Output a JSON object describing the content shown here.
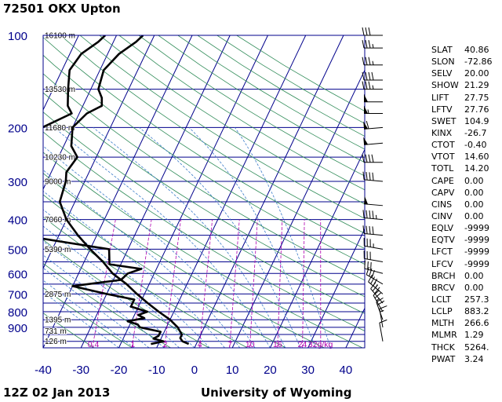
{
  "header": {
    "station": "72501 OKX Upton"
  },
  "footer": {
    "time": "12Z 02 Jan 2013",
    "source": "University of Wyoming"
  },
  "colors": {
    "isobar": "#00008b",
    "isotherm": "#00008b",
    "dry_adiabat": "#2e8b57",
    "moist_adiabat": "#3a7bc8",
    "mixing_ratio": "#b000b0",
    "sounding": "#000000",
    "axis_label": "#00008b",
    "mixing_label": "#b000b0"
  },
  "params": [
    {
      "name": "SLAT",
      "value": "40.86"
    },
    {
      "name": "SLON",
      "value": "-72.86"
    },
    {
      "name": "SELV",
      "value": "20.00"
    },
    {
      "name": "SHOW",
      "value": "21.29"
    },
    {
      "name": "LIFT",
      "value": "27.75"
    },
    {
      "name": "LFTV",
      "value": "27.76"
    },
    {
      "name": "SWET",
      "value": "104.9"
    },
    {
      "name": "KINX",
      "value": "-26.7"
    },
    {
      "name": "CTOT",
      "value": "-0.40"
    },
    {
      "name": "VTOT",
      "value": "14.60"
    },
    {
      "name": "TOTL",
      "value": "14.20"
    },
    {
      "name": "CAPE",
      "value": "0.00"
    },
    {
      "name": "CAPV",
      "value": "0.00"
    },
    {
      "name": "CINS",
      "value": "0.00"
    },
    {
      "name": "CINV",
      "value": "0.00"
    },
    {
      "name": "EQLV",
      "value": "-9999"
    },
    {
      "name": "EQTV",
      "value": "-9999"
    },
    {
      "name": "LFCT",
      "value": "-9999"
    },
    {
      "name": "LFCV",
      "value": "-9999"
    },
    {
      "name": "BRCH",
      "value": "0.00"
    },
    {
      "name": "BRCV",
      "value": "0.00"
    },
    {
      "name": "LCLT",
      "value": "257.3"
    },
    {
      "name": "LCLP",
      "value": "883.2"
    },
    {
      "name": "MLTH",
      "value": "266.6"
    },
    {
      "name": "MLMR",
      "value": "1.29"
    },
    {
      "name": "THCK",
      "value": "5264."
    },
    {
      "name": "PWAT",
      "value": "3.24"
    }
  ],
  "chart_data": {
    "type": "line",
    "subtype": "skew-t log-p",
    "xlabel": "",
    "ylabel": "",
    "xlim": [
      -40,
      45
    ],
    "ylim_hpa": [
      1050,
      100
    ],
    "y_log_scale": true,
    "x_ticks": [
      "-40",
      "-30",
      "-20",
      "-10",
      "0",
      "10",
      "20",
      "30",
      "40"
    ],
    "x_tick_values": [
      -40,
      -30,
      -20,
      -10,
      0,
      10,
      20,
      30,
      40
    ],
    "y_ticks": [
      "100",
      "200",
      "300",
      "400",
      "500",
      "600",
      "700",
      "800",
      "900"
    ],
    "y_tick_values": [
      100,
      200,
      300,
      400,
      500,
      600,
      700,
      800,
      900
    ],
    "height_labels": [
      {
        "p": 100,
        "text": "16100 m"
      },
      {
        "p": 150,
        "text": "13530 m"
      },
      {
        "p": 200,
        "text": "11680 m"
      },
      {
        "p": 250,
        "text": "10230 m"
      },
      {
        "p": 300,
        "text": "9000 m"
      },
      {
        "p": 400,
        "text": "7060 m"
      },
      {
        "p": 500,
        "text": "5390 m"
      },
      {
        "p": 700,
        "text": "2875 m"
      },
      {
        "p": 850,
        "text": "1395 m"
      },
      {
        "p": 925,
        "text": "731 m"
      },
      {
        "p": 1000,
        "text": "126 m"
      }
    ],
    "mixing_ratio_labels": [
      "0.4",
      "1",
      "2",
      "4",
      "7",
      "10",
      "16",
      "24",
      "32g/kg"
    ],
    "series": [
      {
        "role": "temperature",
        "points": [
          {
            "p": 1020,
            "t": -2
          },
          {
            "p": 1000,
            "t": -4
          },
          {
            "p": 975,
            "t": -5
          },
          {
            "p": 950,
            "t": -5
          },
          {
            "p": 925,
            "t": -6
          },
          {
            "p": 900,
            "t": -7
          },
          {
            "p": 850,
            "t": -10
          },
          {
            "p": 800,
            "t": -14
          },
          {
            "p": 750,
            "t": -18
          },
          {
            "p": 700,
            "t": -22
          },
          {
            "p": 650,
            "t": -26
          },
          {
            "p": 600,
            "t": -31
          },
          {
            "p": 550,
            "t": -35
          },
          {
            "p": 500,
            "t": -40
          },
          {
            "p": 450,
            "t": -45
          },
          {
            "p": 400,
            "t": -50
          },
          {
            "p": 350,
            "t": -54
          },
          {
            "p": 300,
            "t": -55
          },
          {
            "p": 280,
            "t": -56
          },
          {
            "p": 250,
            "t": -55
          },
          {
            "p": 230,
            "t": -58
          },
          {
            "p": 200,
            "t": -60
          },
          {
            "p": 180,
            "t": -58
          },
          {
            "p": 170,
            "t": -55
          },
          {
            "p": 160,
            "t": -56
          },
          {
            "p": 150,
            "t": -58
          },
          {
            "p": 130,
            "t": -59
          },
          {
            "p": 115,
            "t": -57
          },
          {
            "p": 105,
            "t": -54
          },
          {
            "p": 100,
            "t": -53
          }
        ]
      },
      {
        "role": "dewpoint",
        "points": [
          {
            "p": 1020,
            "t": -12
          },
          {
            "p": 1000,
            "t": -9
          },
          {
            "p": 980,
            "t": -12
          },
          {
            "p": 960,
            "t": -11
          },
          {
            "p": 930,
            "t": -11
          },
          {
            "p": 900,
            "t": -17
          },
          {
            "p": 880,
            "t": -18
          },
          {
            "p": 860,
            "t": -21
          },
          {
            "p": 840,
            "t": -17
          },
          {
            "p": 820,
            "t": -19
          },
          {
            "p": 800,
            "t": -17
          },
          {
            "p": 770,
            "t": -22
          },
          {
            "p": 730,
            "t": -22
          },
          {
            "p": 700,
            "t": -30
          },
          {
            "p": 660,
            "t": -40
          },
          {
            "p": 630,
            "t": -28
          },
          {
            "p": 600,
            "t": -27
          },
          {
            "p": 580,
            "t": -24
          },
          {
            "p": 560,
            "t": -33
          },
          {
            "p": 500,
            "t": -35
          },
          {
            "p": 450,
            "t": -60
          },
          {
            "p": 400,
            "t": -68
          },
          {
            "p": 350,
            "t": -72
          },
          {
            "p": 320,
            "t": -80
          },
          {
            "p": 300,
            "t": -82
          },
          {
            "p": 285,
            "t": -68
          },
          {
            "p": 250,
            "t": -67
          },
          {
            "p": 200,
            "t": -68
          },
          {
            "p": 180,
            "t": -62
          },
          {
            "p": 170,
            "t": -64
          },
          {
            "p": 150,
            "t": -66
          },
          {
            "p": 130,
            "t": -68
          },
          {
            "p": 115,
            "t": -67
          },
          {
            "p": 105,
            "t": -64
          },
          {
            "p": 100,
            "t": -63
          }
        ]
      }
    ],
    "wind_barbs": [
      {
        "p": 100,
        "dir": 270,
        "kt": 30
      },
      {
        "p": 110,
        "dir": 270,
        "kt": 35
      },
      {
        "p": 125,
        "dir": 270,
        "kt": 35
      },
      {
        "p": 140,
        "dir": 270,
        "kt": 40
      },
      {
        "p": 150,
        "dir": 270,
        "kt": 35
      },
      {
        "p": 165,
        "dir": 270,
        "kt": 50
      },
      {
        "p": 180,
        "dir": 270,
        "kt": 55
      },
      {
        "p": 200,
        "dir": 265,
        "kt": 60
      },
      {
        "p": 225,
        "dir": 265,
        "kt": 50
      },
      {
        "p": 260,
        "dir": 270,
        "kt": 40
      },
      {
        "p": 300,
        "dir": 275,
        "kt": 40
      },
      {
        "p": 360,
        "dir": 275,
        "kt": 50
      },
      {
        "p": 400,
        "dir": 275,
        "kt": 45
      },
      {
        "p": 450,
        "dir": 275,
        "kt": 40
      },
      {
        "p": 500,
        "dir": 280,
        "kt": 35
      },
      {
        "p": 550,
        "dir": 280,
        "kt": 30
      },
      {
        "p": 600,
        "dir": 285,
        "kt": 30
      },
      {
        "p": 650,
        "dir": 300,
        "kt": 30
      },
      {
        "p": 700,
        "dir": 310,
        "kt": 35
      },
      {
        "p": 750,
        "dir": 320,
        "kt": 30
      },
      {
        "p": 800,
        "dir": 330,
        "kt": 25
      },
      {
        "p": 850,
        "dir": 340,
        "kt": 20
      },
      {
        "p": 900,
        "dir": 350,
        "kt": 15
      },
      {
        "p": 1000,
        "dir": 350,
        "kt": 10
      }
    ]
  }
}
